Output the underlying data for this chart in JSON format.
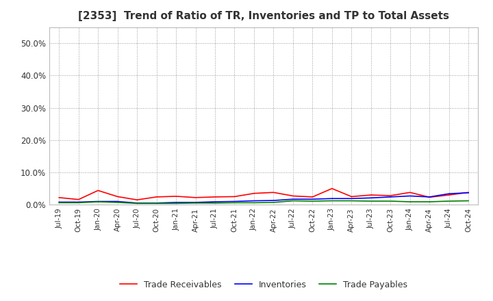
{
  "title": "[2353]  Trend of Ratio of TR, Inventories and TP to Total Assets",
  "x_labels": [
    "Jul-19",
    "Oct-19",
    "Jan-20",
    "Apr-20",
    "Jul-20",
    "Oct-20",
    "Jan-21",
    "Apr-21",
    "Jul-21",
    "Oct-21",
    "Jan-22",
    "Apr-22",
    "Jul-22",
    "Oct-22",
    "Jan-23",
    "Apr-23",
    "Jul-23",
    "Oct-23",
    "Jan-24",
    "Apr-24",
    "Jul-24",
    "Oct-24"
  ],
  "trade_receivables": [
    0.022,
    0.016,
    0.044,
    0.025,
    0.015,
    0.024,
    0.026,
    0.022,
    0.024,
    0.025,
    0.035,
    0.038,
    0.027,
    0.024,
    0.05,
    0.025,
    0.03,
    0.028,
    0.038,
    0.023,
    0.03,
    0.038
  ],
  "inventories": [
    0.008,
    0.008,
    0.01,
    0.01,
    0.005,
    0.005,
    0.007,
    0.007,
    0.009,
    0.01,
    0.012,
    0.013,
    0.017,
    0.017,
    0.019,
    0.019,
    0.021,
    0.024,
    0.027,
    0.024,
    0.034,
    0.037
  ],
  "trade_payables": [
    0.006,
    0.006,
    0.009,
    0.007,
    0.004,
    0.004,
    0.004,
    0.005,
    0.005,
    0.006,
    0.006,
    0.007,
    0.012,
    0.011,
    0.012,
    0.012,
    0.011,
    0.011,
    0.009,
    0.009,
    0.011,
    0.012
  ],
  "tr_color": "#FF0000",
  "inv_color": "#0000FF",
  "tp_color": "#008000",
  "ylim": [
    0.0,
    0.55
  ],
  "yticks": [
    0.0,
    0.1,
    0.2,
    0.3,
    0.4,
    0.5
  ],
  "background_color": "#FFFFFF",
  "grid_color": "#999999",
  "legend_labels": [
    "Trade Receivables",
    "Inventories",
    "Trade Payables"
  ]
}
